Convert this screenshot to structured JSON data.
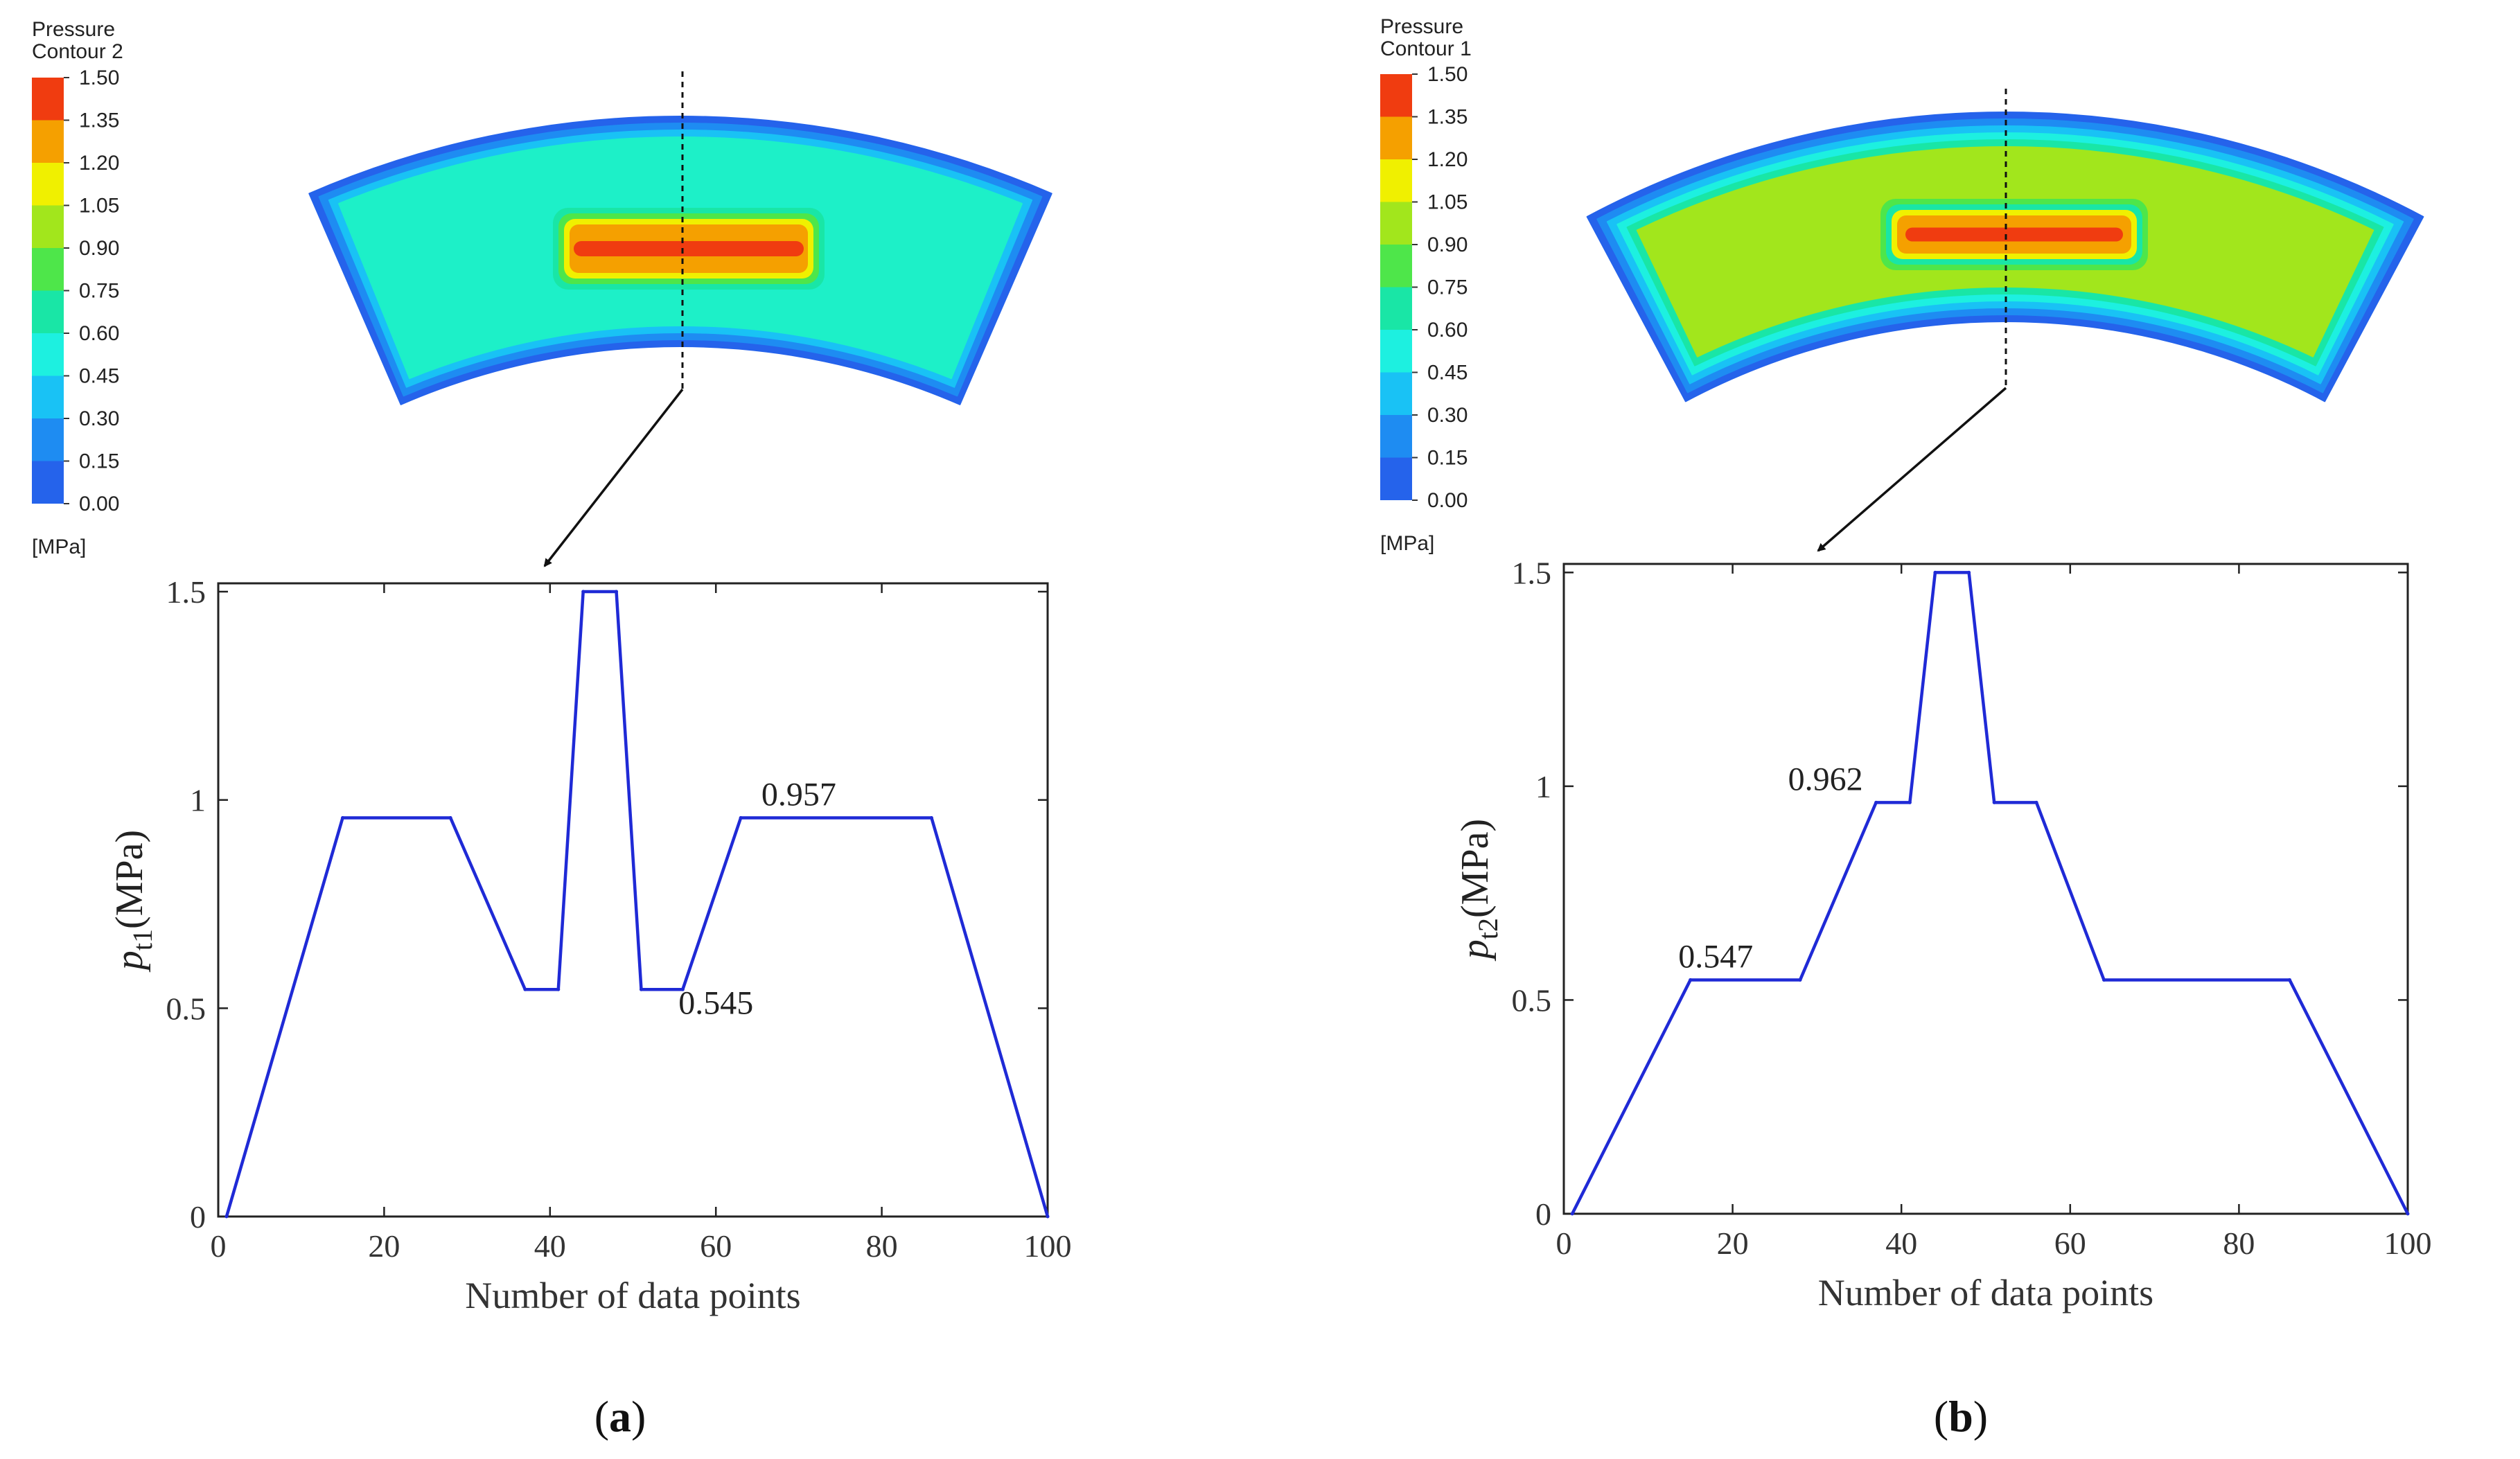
{
  "colorbar": {
    "colors": [
      "#2563eb",
      "#1e8cf2",
      "#19c2f5",
      "#1df0e0",
      "#19e6a6",
      "#4ee64a",
      "#a2e61c",
      "#f0f000",
      "#f5a000",
      "#f03c10"
    ]
  },
  "panels": [
    {
      "id": "a",
      "legend_title_1": "Pressure",
      "legend_title_2": "Contour 2",
      "ticks": [
        "1.50",
        "1.35",
        "1.20",
        "1.05",
        "0.90",
        "0.75",
        "0.60",
        "0.45",
        "0.30",
        "0.15",
        "0.00"
      ],
      "unit": "[MPa]",
      "contour": {
        "edge_colors": [
          "#2563eb",
          "#1e8cf2",
          "#19c2f5"
        ],
        "body_color": "#1df0c8",
        "slot_colors": [
          "#19e6a6",
          "#4ee64a",
          "#f0f000",
          "#f5a000",
          "#f03c10"
        ]
      },
      "caption_letter": "a"
    },
    {
      "id": "b",
      "legend_title_1": "Pressure",
      "legend_title_2": "Contour 1",
      "ticks": [
        "1.50",
        "1.35",
        "1.20",
        "1.05",
        "0.90",
        "0.75",
        "0.60",
        "0.45",
        "0.30",
        "0.15",
        "0.00"
      ],
      "unit": "[MPa]",
      "contour": {
        "edge_colors": [
          "#2563eb",
          "#1e8cf2",
          "#19c2f5",
          "#1df0e0",
          "#19e6a6"
        ],
        "body_color": "#a2e61c",
        "slot_colors": [
          "#4ee64a",
          "#19e6a6",
          "#f0f000",
          "#f5a000",
          "#f03c10"
        ]
      },
      "caption_letter": "b"
    }
  ],
  "chart_data": [
    {
      "type": "line",
      "panel": "a",
      "xlabel": "Number of data points",
      "ylabel_base": "p",
      "ylabel_sub": "t1",
      "ylabel_unit": "(MPa)",
      "xlim": [
        0,
        100
      ],
      "ylim": [
        0,
        1.52
      ],
      "xticks": [
        0,
        20,
        40,
        60,
        80,
        100
      ],
      "yticks": [
        0,
        0.5,
        1,
        1.5
      ],
      "ytick_labels": [
        "0",
        "0.5",
        "1",
        "1.5"
      ],
      "grid": false,
      "line_color": "#1f2ad6",
      "series": [
        {
          "name": "pt1",
          "x": [
            1,
            15,
            28,
            37,
            41,
            44,
            48,
            51,
            56,
            63,
            86,
            100
          ],
          "y": [
            0,
            0.957,
            0.957,
            0.545,
            0.545,
            1.5,
            1.5,
            0.545,
            0.545,
            0.957,
            0.957,
            0
          ]
        }
      ],
      "annotations": [
        {
          "text": "0.957",
          "x": 70,
          "y": 0.957
        },
        {
          "text": "0.545",
          "x": 60,
          "y": 0.545
        }
      ]
    },
    {
      "type": "line",
      "panel": "b",
      "xlabel": "Number of data points",
      "ylabel_base": "p",
      "ylabel_sub": "t2",
      "ylabel_unit": "(MPa)",
      "xlim": [
        0,
        100
      ],
      "ylim": [
        0,
        1.52
      ],
      "xticks": [
        0,
        20,
        40,
        60,
        80,
        100
      ],
      "yticks": [
        0,
        0.5,
        1,
        1.5
      ],
      "ytick_labels": [
        "0",
        "0.5",
        "1",
        "1.5"
      ],
      "grid": false,
      "line_color": "#1f2ad6",
      "series": [
        {
          "name": "pt2",
          "x": [
            1,
            15,
            28,
            37,
            41,
            44,
            48,
            51,
            56,
            64,
            86,
            100
          ],
          "y": [
            0,
            0.547,
            0.547,
            0.962,
            0.962,
            1.5,
            1.5,
            0.962,
            0.962,
            0.547,
            0.547,
            0
          ]
        }
      ],
      "annotations": [
        {
          "text": "0.547",
          "x": 18,
          "y": 0.547
        },
        {
          "text": "0.962",
          "x": 31,
          "y": 0.962
        }
      ]
    }
  ]
}
